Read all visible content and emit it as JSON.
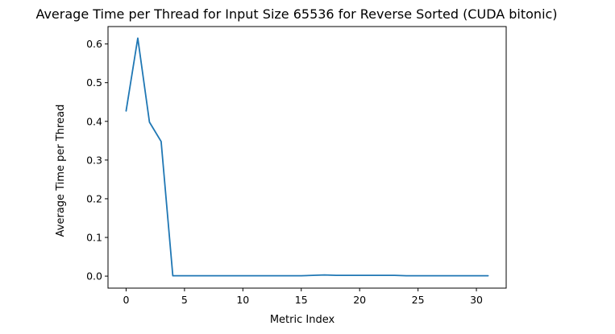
{
  "chart_data": {
    "type": "line",
    "title": "Average Time per Thread for Input Size 65536 for Reverse Sorted (CUDA bitonic)",
    "xlabel": "Metric Index",
    "ylabel": "Average Time per Thread",
    "xlim": [
      -1.55,
      32.55
    ],
    "ylim": [
      -0.031,
      0.645
    ],
    "x_ticks": [
      0,
      5,
      10,
      15,
      20,
      25,
      30
    ],
    "y_ticks": [
      0.0,
      0.1,
      0.2,
      0.3,
      0.4,
      0.5,
      0.6
    ],
    "grid": false,
    "legend": "none",
    "series": [
      {
        "color": "#1f77b4",
        "x": [
          0,
          1,
          2,
          3,
          4,
          5,
          6,
          7,
          8,
          9,
          10,
          11,
          12,
          13,
          14,
          15,
          16,
          17,
          18,
          19,
          20,
          21,
          22,
          23,
          24,
          25,
          26,
          27,
          28,
          29,
          30,
          31
        ],
        "values": [
          0.427,
          0.615,
          0.398,
          0.348,
          0.001,
          0.001,
          0.001,
          0.001,
          0.001,
          0.001,
          0.001,
          0.001,
          0.001,
          0.001,
          0.001,
          0.001,
          0.002,
          0.003,
          0.002,
          0.002,
          0.002,
          0.002,
          0.002,
          0.002,
          0.001,
          0.001,
          0.001,
          0.001,
          0.001,
          0.001,
          0.001,
          0.001
        ]
      }
    ]
  }
}
